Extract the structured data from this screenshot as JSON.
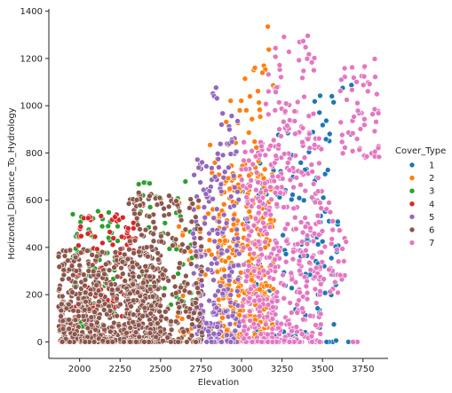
{
  "chart_data": {
    "type": "scatter",
    "title": "",
    "xlabel": "Elevation",
    "ylabel": "Horizontal_Distance_To_Hydrology",
    "xlim": [
      1810,
      3905
    ],
    "ylim": [
      -70,
      1410
    ],
    "xticks": [
      2000,
      2250,
      2500,
      2750,
      3000,
      3250,
      3500,
      3750
    ],
    "yticks": [
      0,
      200,
      400,
      600,
      800,
      1000,
      1200,
      1400
    ],
    "grid": false,
    "legend": {
      "title": "Cover_Type",
      "placement": "right",
      "entries": [
        "1",
        "2",
        "3",
        "4",
        "5",
        "6",
        "7"
      ]
    },
    "series": [
      {
        "name": "1",
        "color": "#1f77b4",
        "clusters": [
          {
            "x": [
              2950,
              3600
            ],
            "y": [
              0,
              700
            ],
            "n": 110
          },
          {
            "x": [
              3100,
              3550
            ],
            "y": [
              600,
              950
            ],
            "n": 35
          },
          {
            "x": [
              3450,
              3700
            ],
            "y": [
              850,
              1100
            ],
            "n": 12
          }
        ]
      },
      {
        "name": "2",
        "color": "#ff7f0e",
        "clusters": [
          {
            "x": [
              2850,
              3200
            ],
            "y": [
              0,
              750
            ],
            "n": 380
          },
          {
            "x": [
              2600,
              2900
            ],
            "y": [
              0,
              600
            ],
            "n": 60
          },
          {
            "x": [
              2800,
              3150
            ],
            "y": [
              700,
              1050
            ],
            "n": 30
          },
          {
            "x": [
              3000,
              3200
            ],
            "y": [
              1050,
              1340
            ],
            "n": 10
          }
        ]
      },
      {
        "name": "3",
        "color": "#2ca02c",
        "clusters": [
          {
            "x": [
              1950,
              2250
            ],
            "y": [
              0,
              560
            ],
            "n": 110
          },
          {
            "x": [
              2350,
              2700
            ],
            "y": [
              150,
              700
            ],
            "n": 55
          }
        ]
      },
      {
        "name": "4",
        "color": "#d62728",
        "clusters": [
          {
            "x": [
              1950,
              2350
            ],
            "y": [
              0,
              550
            ],
            "n": 130
          }
        ]
      },
      {
        "name": "5",
        "color": "#9467bd",
        "clusters": [
          {
            "x": [
              2700,
              2990
            ],
            "y": [
              0,
              800
            ],
            "n": 230
          },
          {
            "x": [
              2800,
              2990
            ],
            "y": [
              800,
              1080
            ],
            "n": 20
          }
        ]
      },
      {
        "name": "6",
        "color": "#8c564b",
        "clusters": [
          {
            "x": [
              1870,
              2500
            ],
            "y": [
              0,
              400
            ],
            "n": 620
          },
          {
            "x": [
              2300,
              2760
            ],
            "y": [
              0,
              640
            ],
            "n": 300
          }
        ]
      },
      {
        "name": "7",
        "color": "#e377c2",
        "clusters": [
          {
            "x": [
              3000,
              3500
            ],
            "y": [
              0,
              900
            ],
            "n": 460
          },
          {
            "x": [
              3150,
              3450
            ],
            "y": [
              900,
              1300
            ],
            "n": 60
          },
          {
            "x": [
              3600,
              3850
            ],
            "y": [
              780,
              1200
            ],
            "n": 60
          },
          {
            "x": [
              3450,
              3650
            ],
            "y": [
              200,
              600
            ],
            "n": 40
          }
        ]
      }
    ]
  }
}
